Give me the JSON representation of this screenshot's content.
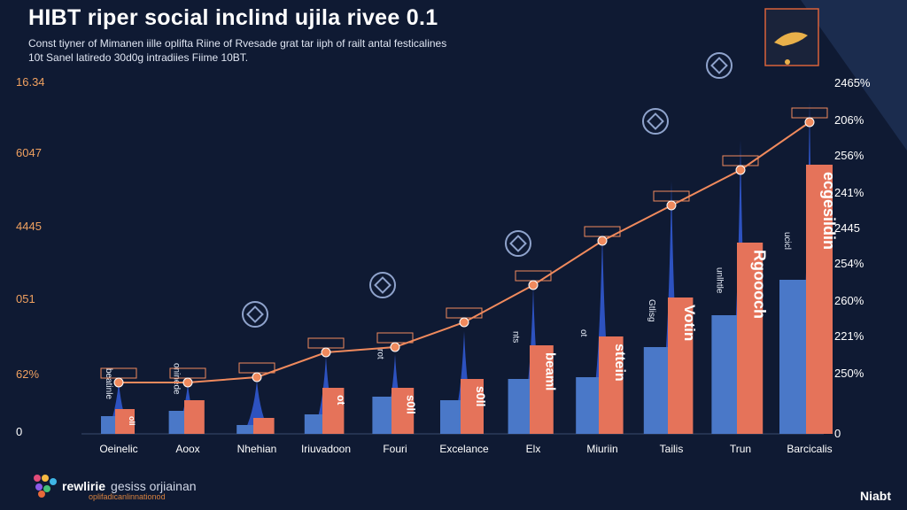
{
  "title": "HIBT riper social inclind ujila rivee 0.1",
  "subtitle_line1": "Const tiyner of Mimanen iille oplifta Riine of Rvesade grat tar iiph of railt antal festicalines",
  "subtitle_line2": "10t Sanel latiredo 30d0g intradiies Fiime 10BT.",
  "colors": {
    "background": "#0f1a33",
    "blue_bar": "#4a78c8",
    "orange_bar": "#e5735a",
    "spike": "#2f55c8",
    "line": "#f08a5d",
    "left_tick": "#f0a160"
  },
  "chart_data": {
    "type": "bar",
    "categories": [
      "Oeinelic",
      "Aoox",
      "Nhehian",
      "Iriuvadoon",
      "Fouri",
      "Excelance",
      "Elx",
      "Miuriin",
      "Tailis",
      "Trun",
      "Barcicalis"
    ],
    "left_axis_ticks": [
      "16.34",
      "6047",
      "4445",
      "051",
      "62%",
      "0"
    ],
    "right_axis_ticks": [
      "2465%",
      "206%",
      "256%",
      "241%",
      "2445",
      "254%",
      "260%",
      "221%",
      "250%",
      "0"
    ],
    "series": [
      {
        "values": [
          0.1,
          0.13,
          0.05,
          0.11,
          0.21,
          0.19,
          0.31,
          0.32,
          0.49,
          0.67,
          0.87
        ]
      },
      {
        "values": [
          0.14,
          0.19,
          0.09,
          0.26,
          0.26,
          0.31,
          0.5,
          0.55,
          0.77,
          1.08,
          1.52
        ]
      },
      {
        "values": [
          0.29,
          0.28,
          0.3,
          0.44,
          0.45,
          0.58,
          0.83,
          1.14,
          1.43,
          1.66,
          1.88
        ]
      }
    ],
    "line_values": [
      0.29,
      0.29,
      0.32,
      0.46,
      0.49,
      0.63,
      0.84,
      1.09,
      1.29,
      1.49,
      1.76
    ],
    "bar_labels": [
      "oll",
      "",
      "",
      "ot",
      "s0ll",
      "s0ll",
      "beaml",
      "sttein",
      "Votin",
      "Rgoooch",
      "ecgesildin"
    ],
    "side_labels": [
      "beatinle",
      "oninede",
      "",
      "",
      "rot",
      "",
      "nts",
      "ot",
      "Gtlisg",
      "unlhtle",
      "ucicl"
    ],
    "annotations": [
      "",
      "",
      "",
      "",
      "",
      "",
      "",
      "",
      "",
      "",
      ""
    ]
  },
  "branding": {
    "name": "rewlirie",
    "tag": "gesiss orjiainan",
    "sub": "oplifadicanlinnationod"
  },
  "footer_right": "Niabt"
}
